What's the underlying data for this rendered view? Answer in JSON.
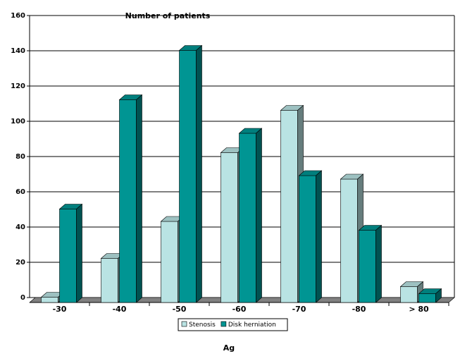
{
  "chart_data": {
    "type": "bar3d",
    "title": "Number of patients",
    "x_label": "Ag",
    "categories": [
      "-30",
      "-40",
      "-50",
      "-60",
      "-70",
      "-80",
      "> 80"
    ],
    "series": [
      {
        "name": "Stenosis",
        "color": "#b9e3e3",
        "values": [
          3,
          25,
          46,
          85,
          109,
          70,
          9
        ]
      },
      {
        "name": "Disk herniation",
        "color": "#009593",
        "values": [
          53,
          115,
          143,
          96,
          72,
          41,
          5
        ]
      }
    ],
    "ylim": [
      0,
      160
    ],
    "yticks": [
      0,
      20,
      40,
      60,
      80,
      100,
      120,
      140,
      160
    ],
    "grid": true,
    "legend": "bottom"
  }
}
